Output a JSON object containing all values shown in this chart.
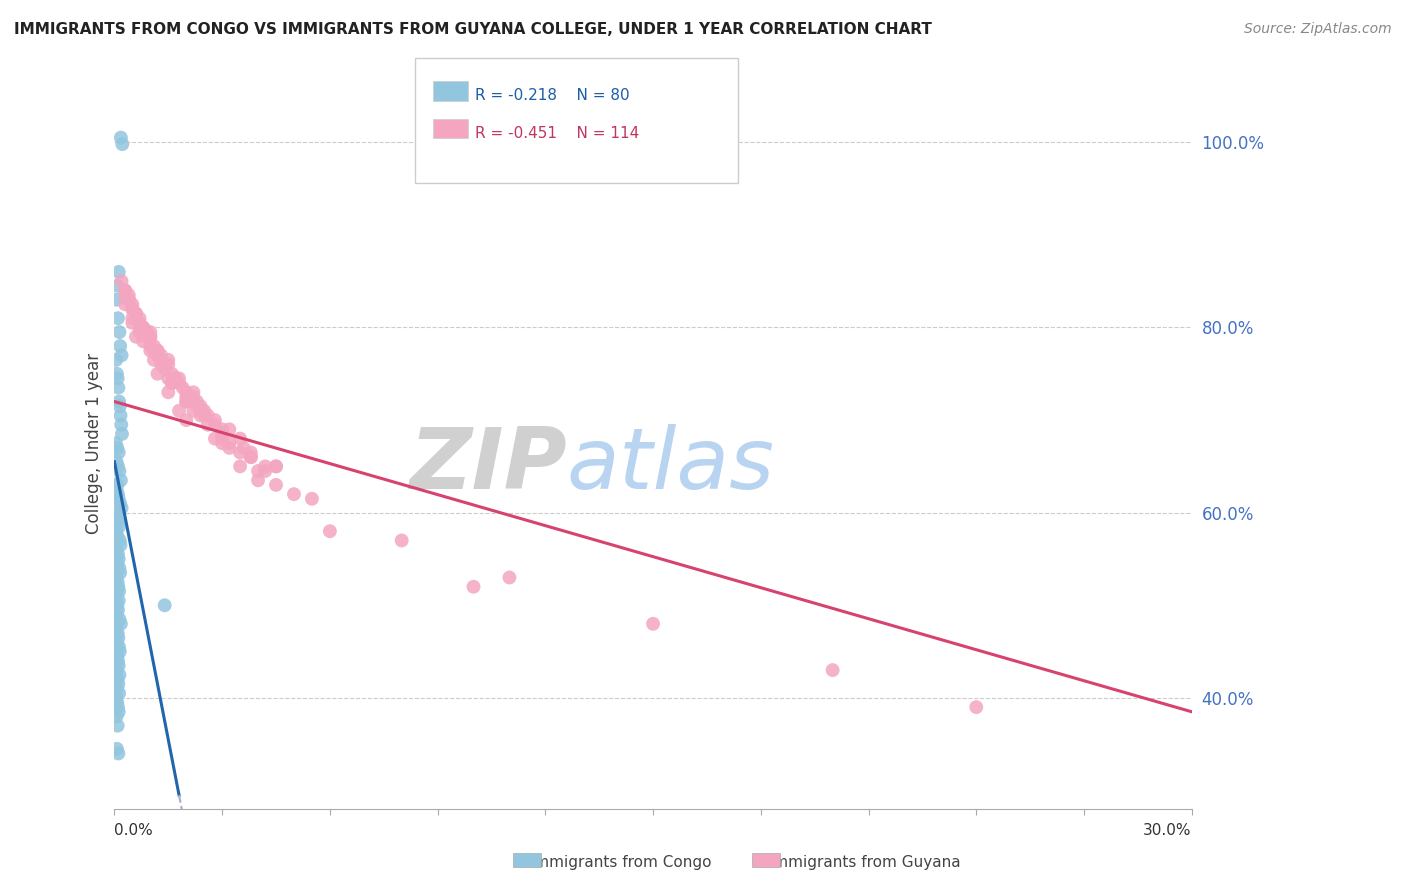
{
  "title": "IMMIGRANTS FROM CONGO VS IMMIGRANTS FROM GUYANA COLLEGE, UNDER 1 YEAR CORRELATION CHART",
  "source": "Source: ZipAtlas.com",
  "ylabel": "College, Under 1 year",
  "right_yticks": [
    40.0,
    60.0,
    80.0,
    100.0
  ],
  "xlim": [
    0.0,
    30.0
  ],
  "ylim": [
    28.0,
    107.0
  ],
  "congo_R": -0.218,
  "congo_N": 80,
  "guyana_R": -0.451,
  "guyana_N": 114,
  "congo_color": "#92c5de",
  "guyana_color": "#f4a6c0",
  "congo_line_color": "#2166ac",
  "guyana_line_color": "#d6436e",
  "watermark_zip": "ZIP",
  "watermark_atlas": "atlas",
  "legend_R_congo": "R = -0.218",
  "legend_N_congo": "N = 80",
  "legend_R_guyana": "R = -0.451",
  "legend_N_guyana": "N = 114",
  "congo_line_x0": 0.0,
  "congo_line_y0": 65.5,
  "congo_line_x1": 1.8,
  "congo_line_y1": 29.5,
  "congo_dash_x1": 30.0,
  "guyana_line_x0": 0.0,
  "guyana_line_y0": 72.0,
  "guyana_line_x1": 30.0,
  "guyana_line_y1": 38.5,
  "congo_points_x": [
    0.18,
    0.22,
    0.12,
    0.08,
    0.06,
    0.1,
    0.14,
    0.16,
    0.2,
    0.05,
    0.07,
    0.09,
    0.11,
    0.13,
    0.15,
    0.17,
    0.19,
    0.21,
    0.04,
    0.08,
    0.12,
    0.06,
    0.1,
    0.14,
    0.18,
    0.08,
    0.06,
    0.1,
    0.12,
    0.16,
    0.2,
    0.07,
    0.09,
    0.11,
    0.13,
    0.05,
    0.08,
    0.15,
    0.17,
    0.06,
    0.1,
    0.12,
    0.08,
    0.14,
    0.16,
    0.06,
    0.09,
    0.11,
    0.13,
    0.07,
    0.12,
    0.08,
    0.1,
    0.06,
    0.14,
    0.18,
    0.05,
    0.09,
    0.11,
    0.07,
    0.13,
    0.15,
    0.08,
    0.1,
    0.12,
    0.06,
    0.14,
    0.09,
    0.11,
    0.07,
    0.13,
    0.05,
    0.08,
    0.1,
    0.12,
    0.06,
    0.09,
    1.4,
    0.07,
    0.11
  ],
  "congo_points_y": [
    100.5,
    99.8,
    86.0,
    84.5,
    83.0,
    81.0,
    79.5,
    78.0,
    77.0,
    76.5,
    75.0,
    74.5,
    73.5,
    72.0,
    71.5,
    70.5,
    69.5,
    68.5,
    67.5,
    67.0,
    66.5,
    65.5,
    65.0,
    64.5,
    63.5,
    63.0,
    62.5,
    62.0,
    61.5,
    61.0,
    60.5,
    60.0,
    59.5,
    59.0,
    58.5,
    58.0,
    57.5,
    57.0,
    56.5,
    56.0,
    55.5,
    55.0,
    54.5,
    54.0,
    53.5,
    53.0,
    52.5,
    52.0,
    51.5,
    51.0,
    50.5,
    50.0,
    49.5,
    49.0,
    48.5,
    48.0,
    47.5,
    47.0,
    46.5,
    46.0,
    45.5,
    45.0,
    44.5,
    44.0,
    43.5,
    43.0,
    42.5,
    42.0,
    41.5,
    41.0,
    40.5,
    40.0,
    39.5,
    39.0,
    38.5,
    38.0,
    37.0,
    50.0,
    34.5,
    34.0
  ],
  "guyana_points_x": [
    0.3,
    0.5,
    0.8,
    1.2,
    1.6,
    2.2,
    2.8,
    0.4,
    0.7,
    1.0,
    1.4,
    1.8,
    2.4,
    3.0,
    3.8,
    0.2,
    0.6,
    0.9,
    1.3,
    1.7,
    2.3,
    3.5,
    4.5,
    0.3,
    0.5,
    0.8,
    1.1,
    1.5,
    2.0,
    2.6,
    3.2,
    4.0,
    5.0,
    0.4,
    0.7,
    1.0,
    1.4,
    1.9,
    2.5,
    3.2,
    4.2,
    0.3,
    0.6,
    0.9,
    1.2,
    1.7,
    2.2,
    3.0,
    4.5,
    0.4,
    0.8,
    1.2,
    1.7,
    2.3,
    3.0,
    4.2,
    0.5,
    1.0,
    1.5,
    2.0,
    2.8,
    3.8,
    0.3,
    0.7,
    1.1,
    1.6,
    2.2,
    3.0,
    0.5,
    1.0,
    1.5,
    2.2,
    3.2,
    0.4,
    0.8,
    1.2,
    1.8,
    2.6,
    3.8,
    0.6,
    1.1,
    1.7,
    2.5,
    3.6,
    0.5,
    1.0,
    1.6,
    2.4,
    3.5,
    5.5,
    8.0,
    11.0,
    15.0,
    20.0,
    24.0,
    0.7,
    1.3,
    2.0,
    3.0,
    4.5,
    0.4,
    0.9,
    1.4,
    2.0,
    2.8,
    4.0,
    6.0,
    10.0,
    2.0,
    1.5,
    0.6,
    1.8,
    1.2,
    3.5
  ],
  "guyana_points_y": [
    84.0,
    82.0,
    80.0,
    77.5,
    75.0,
    72.5,
    70.0,
    83.0,
    80.5,
    78.0,
    76.0,
    74.0,
    71.5,
    69.0,
    66.0,
    85.0,
    81.5,
    79.0,
    77.0,
    74.5,
    72.0,
    68.0,
    65.0,
    82.5,
    80.5,
    78.5,
    76.5,
    74.5,
    72.0,
    69.5,
    67.0,
    64.5,
    62.0,
    83.5,
    81.0,
    79.0,
    76.0,
    73.5,
    70.5,
    67.5,
    64.5,
    84.0,
    81.5,
    79.5,
    77.0,
    74.5,
    72.0,
    68.5,
    65.0,
    83.0,
    80.0,
    77.5,
    74.5,
    71.5,
    68.5,
    65.0,
    82.0,
    79.0,
    76.0,
    73.0,
    69.5,
    66.5,
    83.5,
    80.0,
    77.5,
    74.0,
    71.0,
    67.5,
    82.5,
    79.5,
    76.5,
    73.0,
    69.0,
    83.0,
    80.0,
    77.0,
    74.5,
    70.5,
    66.0,
    81.5,
    78.0,
    74.5,
    71.0,
    67.0,
    81.0,
    77.5,
    74.0,
    70.5,
    66.5,
    61.5,
    57.0,
    53.0,
    48.0,
    43.0,
    39.0,
    79.5,
    76.0,
    72.5,
    68.0,
    63.0,
    83.0,
    79.5,
    75.5,
    72.0,
    68.0,
    63.5,
    58.0,
    52.0,
    70.0,
    73.0,
    79.0,
    71.0,
    75.0,
    65.0
  ]
}
